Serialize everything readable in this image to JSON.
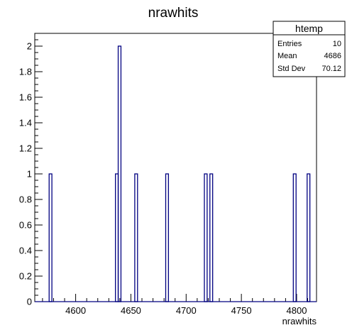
{
  "chart_data": {
    "type": "bar",
    "title": "nrawhits",
    "xlabel": "nrawhits",
    "ylabel": "",
    "xlim": [
      4563,
      4818
    ],
    "ylim": [
      0,
      2.1
    ],
    "bin_width": 2.55,
    "x_ticks": [
      4600,
      4650,
      4700,
      4750,
      4800
    ],
    "y_ticks": [
      0,
      0.2,
      0.4,
      0.6,
      0.8,
      1,
      1.2,
      1.4,
      1.6,
      1.8,
      2
    ],
    "y_tick_labels": [
      "0",
      "0.2",
      "0.4",
      "0.6",
      "0.8",
      "1",
      "1.2",
      "1.4",
      "1.6",
      "1.8",
      "2"
    ],
    "bins": [
      {
        "low": 4576.0,
        "high": 4578.5,
        "value": 1
      },
      {
        "low": 4636.0,
        "high": 4638.5,
        "value": 1
      },
      {
        "low": 4638.5,
        "high": 4641.0,
        "value": 2
      },
      {
        "low": 4653.5,
        "high": 4656.0,
        "value": 1
      },
      {
        "low": 4681.5,
        "high": 4684.0,
        "value": 1
      },
      {
        "low": 4716.5,
        "high": 4719.0,
        "value": 1
      },
      {
        "low": 4721.5,
        "high": 4724.0,
        "value": 1
      },
      {
        "low": 4797.0,
        "high": 4799.5,
        "value": 1
      },
      {
        "low": 4809.5,
        "high": 4812.0,
        "value": 1
      }
    ],
    "line_color": "#000080",
    "grid": false,
    "legend_position": "top-right",
    "stats": {
      "name": "htemp",
      "rows": [
        {
          "label": "Entries",
          "value": "10"
        },
        {
          "label": "Mean",
          "value": "4686"
        },
        {
          "label": "Std Dev",
          "value": "70.12"
        }
      ]
    }
  }
}
